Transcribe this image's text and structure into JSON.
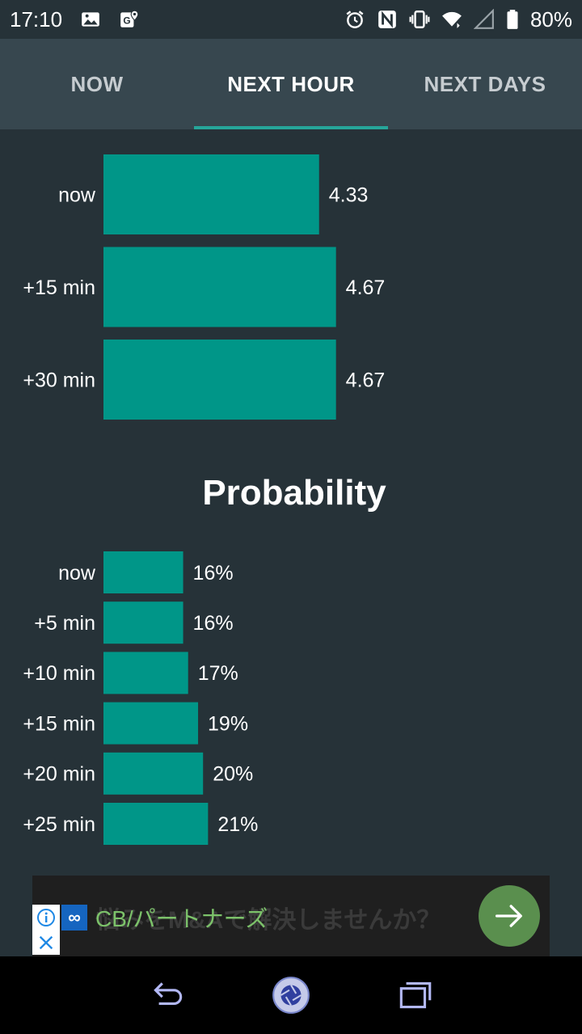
{
  "status_bar": {
    "time": "17:10",
    "battery": "80%",
    "icons": [
      "image-icon",
      "maps-icon",
      "alarm-icon",
      "nfc-icon",
      "vibrate-icon",
      "wifi-icon",
      "signal-icon",
      "battery-icon"
    ]
  },
  "tabs": [
    {
      "label": "NOW",
      "active": false
    },
    {
      "label": "NEXT HOUR",
      "active": true
    },
    {
      "label": "NEXT DAYS",
      "active": false
    }
  ],
  "colors": {
    "background": "#263238",
    "tabbar": "#37474f",
    "bar": "#009688",
    "accent": "#26a69a"
  },
  "chart_data": [
    {
      "type": "bar",
      "orientation": "horizontal",
      "categories": [
        "now",
        "+15 min",
        "+30 min"
      ],
      "values": [
        4.33,
        4.67,
        4.67
      ],
      "value_labels": [
        "4.33",
        "4.67",
        "4.67"
      ],
      "title": "",
      "xlim": [
        0,
        10
      ]
    },
    {
      "type": "bar",
      "orientation": "horizontal",
      "categories": [
        "now",
        "+5 min",
        "+10 min",
        "+15 min",
        "+20 min",
        "+25 min"
      ],
      "values": [
        16,
        16,
        17,
        19,
        20,
        21
      ],
      "value_labels": [
        "16%",
        "16%",
        "17%",
        "19%",
        "20%",
        "21%"
      ],
      "title": "Probability",
      "xlim": [
        0,
        100
      ]
    }
  ],
  "ad": {
    "logo": "∞",
    "text": "CB/パートナーズ",
    "background_text": "悩みをM&Aで解決しませんか？"
  },
  "nav": {
    "icons": [
      "back-icon",
      "home-icon",
      "recents-icon"
    ]
  }
}
